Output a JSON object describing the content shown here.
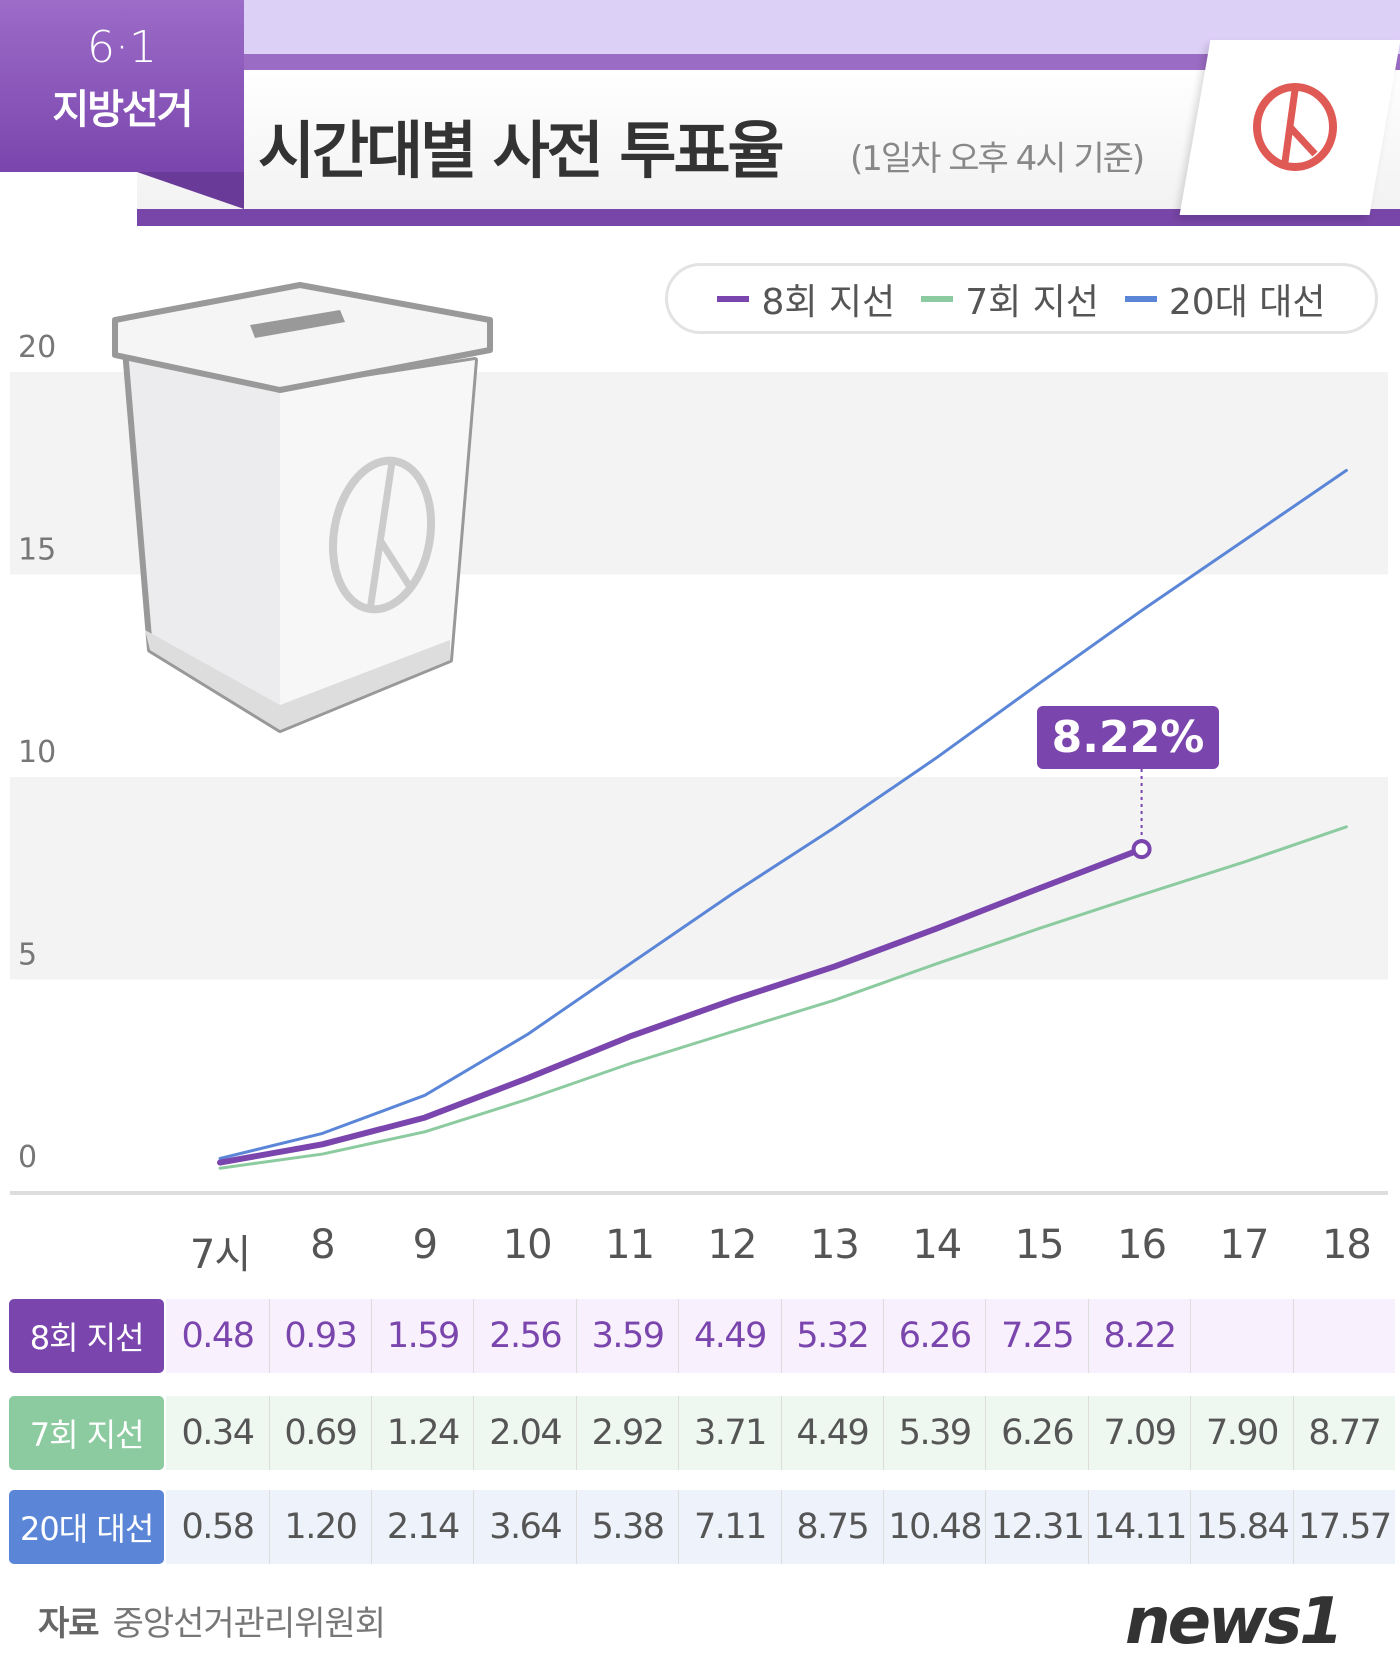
{
  "header": {
    "badge_date": "6·1",
    "badge_label": "지방선거",
    "title": "시간대별 사전 투표율",
    "subtitle": "(1일차 오후 4시 기준)"
  },
  "legend": [
    {
      "label": "8회 지선",
      "color": "#7a45ad"
    },
    {
      "label": "7회 지선",
      "color": "#8ccba0"
    },
    {
      "label": "20대 대선",
      "color": "#5b86d8"
    }
  ],
  "callout": "8.22%",
  "chart_data": {
    "type": "line",
    "x": [
      "7시",
      "8",
      "9",
      "10",
      "11",
      "12",
      "13",
      "14",
      "15",
      "16",
      "17",
      "18"
    ],
    "ylim": [
      0,
      20
    ],
    "yticks": [
      0,
      5,
      10,
      15,
      20
    ],
    "grid": "alternating bands",
    "legend_position": "top-right",
    "series": [
      {
        "name": "8회 지선",
        "color": "#7a45ad",
        "values": [
          0.48,
          0.93,
          1.59,
          2.56,
          3.59,
          4.49,
          5.32,
          6.26,
          7.25,
          8.22,
          null,
          null
        ]
      },
      {
        "name": "7회 지선",
        "color": "#8ccba0",
        "values": [
          0.34,
          0.69,
          1.24,
          2.04,
          2.92,
          3.71,
          4.49,
          5.39,
          6.26,
          7.09,
          7.9,
          8.77
        ]
      },
      {
        "name": "20대 대선",
        "color": "#5b86d8",
        "values": [
          0.58,
          1.2,
          2.14,
          3.64,
          5.38,
          7.11,
          8.75,
          10.48,
          12.31,
          14.11,
          15.84,
          17.57
        ]
      }
    ]
  },
  "table": {
    "rows": [
      {
        "label": "8회 지선",
        "cells": [
          "0.48",
          "0.93",
          "1.59",
          "2.56",
          "3.59",
          "4.49",
          "5.32",
          "6.26",
          "7.25",
          "8.22",
          "",
          ""
        ]
      },
      {
        "label": "7회 지선",
        "cells": [
          "0.34",
          "0.69",
          "1.24",
          "2.04",
          "2.92",
          "3.71",
          "4.49",
          "5.39",
          "6.26",
          "7.09",
          "7.90",
          "8.77"
        ]
      },
      {
        "label": "20대 대선",
        "cells": [
          "0.58",
          "1.20",
          "2.14",
          "3.64",
          "5.38",
          "7.11",
          "8.75",
          "10.48",
          "12.31",
          "14.11",
          "15.84",
          "17.57"
        ]
      }
    ]
  },
  "footer": {
    "source_label": "자료",
    "source": "중앙선거관리위원회",
    "logo": "news1"
  }
}
